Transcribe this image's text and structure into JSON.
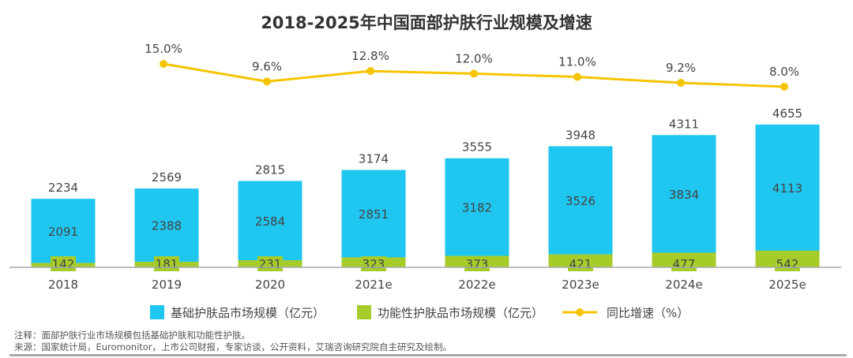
{
  "chart_data": {
    "type": "bar+line",
    "title": "2018-2025年中国面部护肤行业规模及增速",
    "categories": [
      "2018",
      "2019",
      "2020",
      "2021e",
      "2022e",
      "2023e",
      "2024e",
      "2025e"
    ],
    "series": [
      {
        "name": "基础护肤品市场规模（亿元）",
        "type": "bar",
        "stack": "total",
        "color": "#1fc6f0",
        "values": [
          2091,
          2388,
          2584,
          2851,
          3182,
          3526,
          3834,
          4113
        ]
      },
      {
        "name": "功能性护肤品市场规模（亿元）",
        "type": "bar",
        "stack": "total",
        "color": "#a6cc2a",
        "values": [
          142,
          181,
          231,
          323,
          373,
          421,
          477,
          542
        ]
      },
      {
        "name": "同比增速（%）",
        "type": "line",
        "color": "#f5c400",
        "values": [
          null,
          15.0,
          9.6,
          12.8,
          12.0,
          11.0,
          9.2,
          8.0
        ],
        "labels": [
          "",
          "15.0%",
          "9.6%",
          "12.8%",
          "12.0%",
          "11.0%",
          "9.2%",
          "8.0%"
        ]
      }
    ],
    "totals": [
      2234,
      2569,
      2815,
      3174,
      3555,
      3948,
      4311,
      4655
    ],
    "legend": "bottom",
    "grid": false
  },
  "notes": {
    "note": "注释：面部护肤行业市场规模包括基础护肤和功能性护肤。",
    "source": "来源：国家统计局，Euromonitor，上市公司财报，专家访谈，公开资料，艾瑞咨询研究院自主研究及绘制。"
  }
}
